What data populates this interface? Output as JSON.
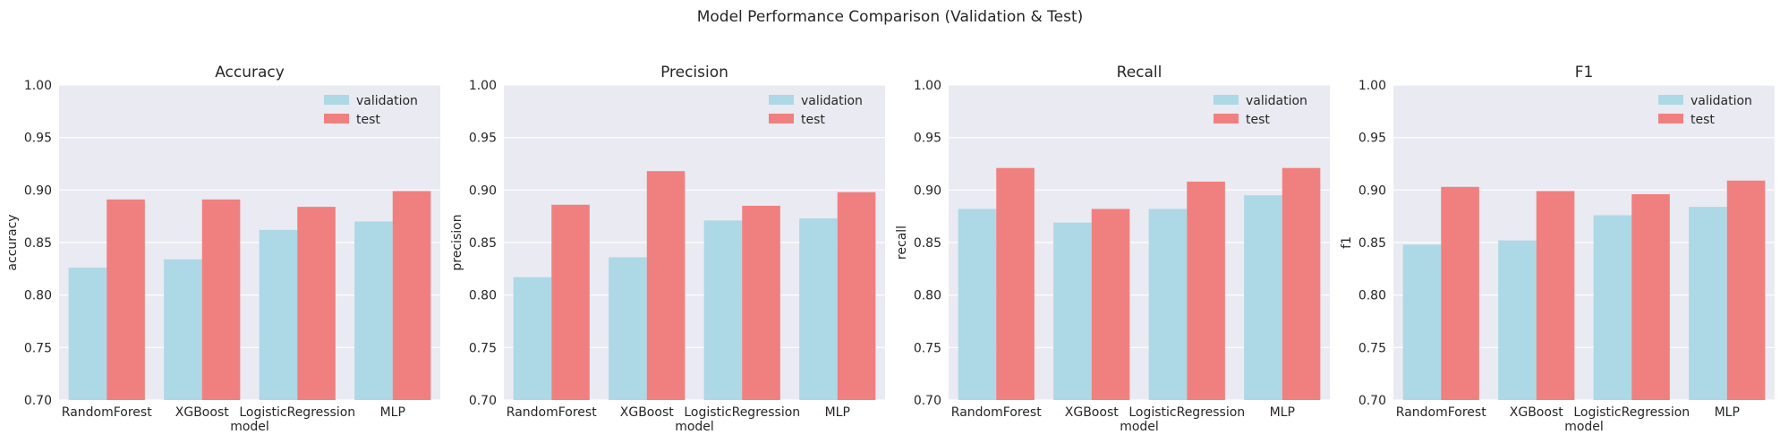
{
  "figure": {
    "title": "Model Performance Comparison (Validation & Test)"
  },
  "colors": {
    "validation": "#add8e6",
    "test": "#f08080",
    "plot_background": "#eaeaf2",
    "grid": "#ffffff"
  },
  "legend": {
    "placement": "top-right",
    "entries": [
      "validation",
      "test"
    ]
  },
  "chart_data": [
    {
      "type": "bar",
      "title": "Accuracy",
      "xlabel": "model",
      "ylabel": "accuracy",
      "ylim": [
        0.7,
        1.0
      ],
      "yticks": [
        "0.70",
        "0.75",
        "0.80",
        "0.85",
        "0.90",
        "0.95",
        "1.00"
      ],
      "grid": true,
      "categories": [
        "RandomForest",
        "XGBoost",
        "LogisticRegression",
        "MLP"
      ],
      "series": [
        {
          "name": "validation",
          "values": [
            0.826,
            0.834,
            0.862,
            0.87
          ]
        },
        {
          "name": "test",
          "values": [
            0.891,
            0.891,
            0.884,
            0.899
          ]
        }
      ]
    },
    {
      "type": "bar",
      "title": "Precision",
      "xlabel": "model",
      "ylabel": "precision",
      "ylim": [
        0.7,
        1.0
      ],
      "yticks": [
        "0.70",
        "0.75",
        "0.80",
        "0.85",
        "0.90",
        "0.95",
        "1.00"
      ],
      "grid": true,
      "categories": [
        "RandomForest",
        "XGBoost",
        "LogisticRegression",
        "MLP"
      ],
      "series": [
        {
          "name": "validation",
          "values": [
            0.817,
            0.836,
            0.871,
            0.873
          ]
        },
        {
          "name": "test",
          "values": [
            0.886,
            0.918,
            0.885,
            0.898
          ]
        }
      ]
    },
    {
      "type": "bar",
      "title": "Recall",
      "xlabel": "model",
      "ylabel": "recall",
      "ylim": [
        0.7,
        1.0
      ],
      "yticks": [
        "0.70",
        "0.75",
        "0.80",
        "0.85",
        "0.90",
        "0.95",
        "1.00"
      ],
      "grid": true,
      "categories": [
        "RandomForest",
        "XGBoost",
        "LogisticRegression",
        "MLP"
      ],
      "series": [
        {
          "name": "validation",
          "values": [
            0.882,
            0.869,
            0.882,
            0.895
          ]
        },
        {
          "name": "test",
          "values": [
            0.921,
            0.882,
            0.908,
            0.921
          ]
        }
      ]
    },
    {
      "type": "bar",
      "title": "F1",
      "xlabel": "model",
      "ylabel": "f1",
      "ylim": [
        0.7,
        1.0
      ],
      "yticks": [
        "0.70",
        "0.75",
        "0.80",
        "0.85",
        "0.90",
        "0.95",
        "1.00"
      ],
      "grid": true,
      "categories": [
        "RandomForest",
        "XGBoost",
        "LogisticRegression",
        "MLP"
      ],
      "series": [
        {
          "name": "validation",
          "values": [
            0.848,
            0.852,
            0.876,
            0.884
          ]
        },
        {
          "name": "test",
          "values": [
            0.903,
            0.899,
            0.896,
            0.909
          ]
        }
      ]
    }
  ]
}
